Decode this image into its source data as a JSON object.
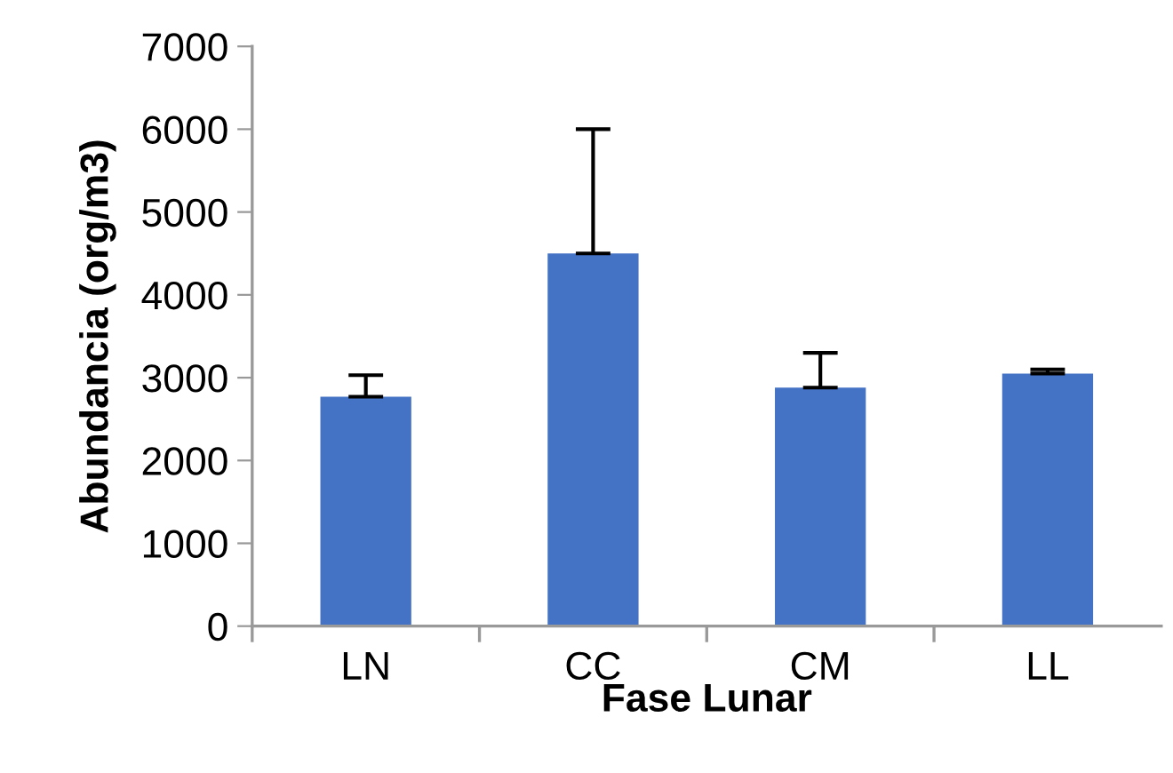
{
  "chart_data": {
    "type": "bar",
    "xlabel": "Fase Lunar",
    "ylabel": "Abundancia (org/m3)",
    "categories": [
      "LN",
      "CC",
      "CM",
      "LL"
    ],
    "series": [
      {
        "color": "#4472c4",
        "values": [
          2770,
          4500,
          2880,
          3050
        ],
        "errors": [
          [
            2770,
            3030
          ],
          [
            4500,
            6000
          ],
          [
            2880,
            3300
          ],
          [
            3050,
            3100
          ]
        ]
      }
    ],
    "ylim": [
      0,
      7000
    ],
    "yticks": [
      0,
      1000,
      2000,
      3000,
      4000,
      5000,
      6000,
      7000
    ],
    "grid": false,
    "legend": false
  }
}
